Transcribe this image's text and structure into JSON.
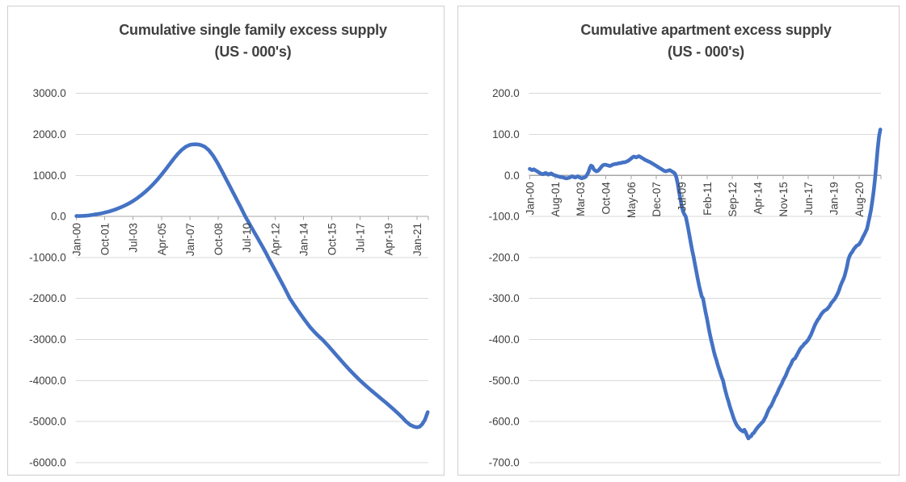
{
  "page": {
    "background": "#ffffff",
    "panel_border_color": "#cfcfcf",
    "text_color": "#404040",
    "gridline_color": "#d9d9d9",
    "axis_color": "#a6a6a6"
  },
  "chart_data": [
    {
      "type": "line",
      "title": "Cumulative single family excess supply",
      "subtitle": "(US - 000's)",
      "frequency": "monthly",
      "x_start": "Jan-2000",
      "x_tick_interval_months": 21,
      "x_tick_labels": [
        "Jan-00",
        "Oct-01",
        "Jul-03",
        "Apr-05",
        "Jan-07",
        "Oct-08",
        "Jul-10",
        "Apr-12",
        "Jan-14",
        "Oct-15",
        "Jul-17",
        "Apr-19",
        "Jan-21"
      ],
      "ylim": [
        -6000,
        3000
      ],
      "y_tick_step": 1000,
      "y_tick_labels": [
        "3000.0",
        "2000.0",
        "1000.0",
        "0.0",
        "-1000.0",
        "-2000.0",
        "-3000.0",
        "-4000.0",
        "-5000.0",
        "-6000.0"
      ],
      "grid": true,
      "legend": "none",
      "line_color": "#4472c4",
      "points_month_value": [
        [
          0,
          10
        ],
        [
          3,
          12
        ],
        [
          6,
          16
        ],
        [
          9,
          25
        ],
        [
          12,
          40
        ],
        [
          15,
          55
        ],
        [
          18,
          72
        ],
        [
          21,
          95
        ],
        [
          24,
          120
        ],
        [
          27,
          150
        ],
        [
          30,
          185
        ],
        [
          33,
          225
        ],
        [
          36,
          270
        ],
        [
          39,
          320
        ],
        [
          42,
          378
        ],
        [
          45,
          445
        ],
        [
          48,
          520
        ],
        [
          51,
          602
        ],
        [
          54,
          692
        ],
        [
          57,
          792
        ],
        [
          60,
          900
        ],
        [
          63,
          1020
        ],
        [
          66,
          1145
        ],
        [
          69,
          1275
        ],
        [
          72,
          1405
        ],
        [
          75,
          1525
        ],
        [
          78,
          1625
        ],
        [
          81,
          1700
        ],
        [
          84,
          1745
        ],
        [
          86,
          1756
        ],
        [
          88,
          1760
        ],
        [
          90,
          1756
        ],
        [
          92,
          1742
        ],
        [
          95,
          1700
        ],
        [
          98,
          1615
        ],
        [
          101,
          1490
        ],
        [
          104,
          1330
        ],
        [
          107,
          1150
        ],
        [
          110,
          960
        ],
        [
          113,
          770
        ],
        [
          116,
          580
        ],
        [
          119,
          390
        ],
        [
          122,
          200
        ],
        [
          125,
          0
        ],
        [
          128,
          -175
        ],
        [
          131,
          -350
        ],
        [
          134,
          -520
        ],
        [
          137,
          -695
        ],
        [
          140,
          -870
        ],
        [
          142,
          -1000
        ],
        [
          145,
          -1185
        ],
        [
          148,
          -1370
        ],
        [
          151,
          -1555
        ],
        [
          154,
          -1740
        ],
        [
          156,
          -1870
        ],
        [
          158,
          -2000
        ],
        [
          161,
          -2150
        ],
        [
          164,
          -2295
        ],
        [
          167,
          -2435
        ],
        [
          170,
          -2570
        ],
        [
          173,
          -2700
        ],
        [
          176,
          -2810
        ],
        [
          179,
          -2910
        ],
        [
          182,
          -3000
        ],
        [
          186,
          -3140
        ],
        [
          190,
          -3290
        ],
        [
          194,
          -3440
        ],
        [
          198,
          -3590
        ],
        [
          202,
          -3735
        ],
        [
          206,
          -3870
        ],
        [
          210,
          -4000
        ],
        [
          214,
          -4120
        ],
        [
          218,
          -4235
        ],
        [
          222,
          -4345
        ],
        [
          226,
          -4455
        ],
        [
          230,
          -4565
        ],
        [
          234,
          -4680
        ],
        [
          238,
          -4800
        ],
        [
          241,
          -4895
        ],
        [
          244,
          -5000
        ],
        [
          247,
          -5080
        ],
        [
          250,
          -5125
        ],
        [
          252,
          -5140
        ],
        [
          254,
          -5125
        ],
        [
          256,
          -5060
        ],
        [
          258,
          -4950
        ],
        [
          260,
          -4770
        ]
      ]
    },
    {
      "type": "line",
      "title": "Cumulative apartment excess supply",
      "subtitle": "(US - 000's)",
      "frequency": "monthly",
      "x_start": "Jan-2000",
      "x_tick_interval_months": 19,
      "x_tick_labels": [
        "Jan-00",
        "Aug-01",
        "Mar-03",
        "Oct-04",
        "May-06",
        "Dec-07",
        "Jul-09",
        "Feb-11",
        "Sep-12",
        "Apr-14",
        "Nov-15",
        "Jun-17",
        "Jan-19",
        "Aug-20"
      ],
      "ylim": [
        -700,
        200
      ],
      "y_tick_step": 100,
      "y_tick_labels": [
        "200.0",
        "100.0",
        "0.0",
        "-100.0",
        "-200.0",
        "-300.0",
        "-400.0",
        "-500.0",
        "-600.0",
        "-700.0"
      ],
      "grid": true,
      "legend": "none",
      "line_color": "#4472c4",
      "points_month_value": [
        [
          0,
          16
        ],
        [
          1,
          14
        ],
        [
          2,
          13
        ],
        [
          3,
          15
        ],
        [
          4,
          13
        ],
        [
          5,
          11
        ],
        [
          6,
          9
        ],
        [
          7,
          7
        ],
        [
          8,
          5
        ],
        [
          9,
          4
        ],
        [
          10,
          3
        ],
        [
          11,
          5
        ],
        [
          12,
          6
        ],
        [
          13,
          4
        ],
        [
          14,
          2
        ],
        [
          15,
          4
        ],
        [
          16,
          5
        ],
        [
          17,
          3
        ],
        [
          18,
          1
        ],
        [
          19,
          0
        ],
        [
          20,
          -1
        ],
        [
          21,
          -2
        ],
        [
          22,
          -3
        ],
        [
          23,
          -4
        ],
        [
          24,
          -4
        ],
        [
          25,
          -5
        ],
        [
          26,
          -6
        ],
        [
          27,
          -7
        ],
        [
          28,
          -7
        ],
        [
          29,
          -6
        ],
        [
          30,
          -5
        ],
        [
          31,
          -3
        ],
        [
          32,
          -2
        ],
        [
          33,
          -4
        ],
        [
          34,
          -5
        ],
        [
          35,
          -4
        ],
        [
          36,
          -2
        ],
        [
          37,
          -4
        ],
        [
          38,
          -6
        ],
        [
          39,
          -7
        ],
        [
          40,
          -6
        ],
        [
          41,
          -5
        ],
        [
          42,
          -3
        ],
        [
          43,
          2
        ],
        [
          44,
          8
        ],
        [
          45,
          18
        ],
        [
          46,
          24
        ],
        [
          47,
          22
        ],
        [
          48,
          15
        ],
        [
          49,
          12
        ],
        [
          50,
          10
        ],
        [
          51,
          11
        ],
        [
          52,
          14
        ],
        [
          53,
          18
        ],
        [
          54,
          22
        ],
        [
          55,
          25
        ],
        [
          56,
          26
        ],
        [
          57,
          26
        ],
        [
          58,
          25
        ],
        [
          59,
          24
        ],
        [
          60,
          23
        ],
        [
          61,
          24
        ],
        [
          62,
          26
        ],
        [
          63,
          27
        ],
        [
          64,
          28
        ],
        [
          65,
          28
        ],
        [
          66,
          29
        ],
        [
          67,
          30
        ],
        [
          68,
          30
        ],
        [
          69,
          31
        ],
        [
          70,
          32
        ],
        [
          71,
          32
        ],
        [
          72,
          33
        ],
        [
          74,
          36
        ],
        [
          76,
          41
        ],
        [
          77,
          44
        ],
        [
          78,
          46
        ],
        [
          79,
          45
        ],
        [
          80,
          44
        ],
        [
          81,
          46
        ],
        [
          82,
          47
        ],
        [
          83,
          45
        ],
        [
          84,
          43
        ],
        [
          85,
          41
        ],
        [
          86,
          39
        ],
        [
          87,
          37
        ],
        [
          88,
          36
        ],
        [
          89,
          34
        ],
        [
          90,
          33
        ],
        [
          91,
          31
        ],
        [
          92,
          29
        ],
        [
          93,
          27
        ],
        [
          94,
          25
        ],
        [
          95,
          23
        ],
        [
          96,
          21
        ],
        [
          97,
          19
        ],
        [
          98,
          17
        ],
        [
          99,
          15
        ],
        [
          100,
          13
        ],
        [
          101,
          11
        ],
        [
          102,
          10
        ],
        [
          103,
          11
        ],
        [
          104,
          12
        ],
        [
          105,
          13
        ],
        [
          106,
          11
        ],
        [
          107,
          9
        ],
        [
          108,
          7
        ],
        [
          109,
          4
        ],
        [
          110,
          -5
        ],
        [
          111,
          -20
        ],
        [
          112,
          -40
        ],
        [
          113,
          -58
        ],
        [
          114,
          -75
        ],
        [
          115,
          -88
        ],
        [
          116,
          -95
        ],
        [
          117,
          -100
        ],
        [
          118,
          -115
        ],
        [
          119,
          -132
        ],
        [
          120,
          -150
        ],
        [
          121,
          -168
        ],
        [
          122,
          -185
        ],
        [
          123,
          -200
        ],
        [
          124,
          -218
        ],
        [
          125,
          -235
        ],
        [
          126,
          -252
        ],
        [
          127,
          -268
        ],
        [
          128,
          -282
        ],
        [
          129,
          -295
        ],
        [
          130,
          -300
        ],
        [
          131,
          -318
        ],
        [
          132,
          -335
        ],
        [
          133,
          -350
        ],
        [
          134,
          -368
        ],
        [
          135,
          -385
        ],
        [
          136,
          -400
        ],
        [
          137,
          -413
        ],
        [
          138,
          -428
        ],
        [
          139,
          -440
        ],
        [
          140,
          -450
        ],
        [
          141,
          -462
        ],
        [
          142,
          -472
        ],
        [
          143,
          -482
        ],
        [
          144,
          -492
        ],
        [
          145,
          -500
        ],
        [
          146,
          -515
        ],
        [
          147,
          -528
        ],
        [
          148,
          -540
        ],
        [
          149,
          -550
        ],
        [
          150,
          -562
        ],
        [
          151,
          -572
        ],
        [
          152,
          -582
        ],
        [
          153,
          -592
        ],
        [
          154,
          -600
        ],
        [
          155,
          -607
        ],
        [
          156,
          -612
        ],
        [
          157,
          -616
        ],
        [
          158,
          -620
        ],
        [
          159,
          -622
        ],
        [
          160,
          -624
        ],
        [
          161,
          -620
        ],
        [
          162,
          -626
        ],
        [
          163,
          -634
        ],
        [
          164,
          -641
        ],
        [
          165,
          -637
        ],
        [
          166,
          -636
        ],
        [
          167,
          -630
        ],
        [
          168,
          -628
        ],
        [
          169,
          -623
        ],
        [
          170,
          -618
        ],
        [
          171,
          -614
        ],
        [
          172,
          -610
        ],
        [
          173,
          -607
        ],
        [
          174,
          -603
        ],
        [
          175,
          -600
        ],
        [
          176,
          -594
        ],
        [
          177,
          -588
        ],
        [
          178,
          -580
        ],
        [
          179,
          -572
        ],
        [
          180,
          -566
        ],
        [
          181,
          -562
        ],
        [
          182,
          -555
        ],
        [
          183,
          -548
        ],
        [
          184,
          -540
        ],
        [
          185,
          -535
        ],
        [
          186,
          -528
        ],
        [
          187,
          -520
        ],
        [
          188,
          -514
        ],
        [
          189,
          -508
        ],
        [
          190,
          -500
        ],
        [
          191,
          -494
        ],
        [
          192,
          -488
        ],
        [
          193,
          -480
        ],
        [
          194,
          -472
        ],
        [
          195,
          -466
        ],
        [
          196,
          -460
        ],
        [
          197,
          -452
        ],
        [
          198,
          -448
        ],
        [
          199,
          -446
        ],
        [
          200,
          -440
        ],
        [
          201,
          -434
        ],
        [
          202,
          -428
        ],
        [
          203,
          -422
        ],
        [
          204,
          -418
        ],
        [
          205,
          -415
        ],
        [
          206,
          -410
        ],
        [
          207,
          -408
        ],
        [
          208,
          -404
        ],
        [
          209,
          -400
        ],
        [
          210,
          -394
        ],
        [
          211,
          -388
        ],
        [
          212,
          -380
        ],
        [
          213,
          -372
        ],
        [
          214,
          -364
        ],
        [
          215,
          -358
        ],
        [
          216,
          -352
        ],
        [
          217,
          -348
        ],
        [
          218,
          -342
        ],
        [
          219,
          -337
        ],
        [
          220,
          -333
        ],
        [
          221,
          -330
        ],
        [
          222,
          -328
        ],
        [
          223,
          -326
        ],
        [
          224,
          -322
        ],
        [
          225,
          -318
        ],
        [
          226,
          -312
        ],
        [
          227,
          -308
        ],
        [
          228,
          -304
        ],
        [
          229,
          -300
        ],
        [
          230,
          -294
        ],
        [
          231,
          -288
        ],
        [
          232,
          -280
        ],
        [
          233,
          -270
        ],
        [
          234,
          -262
        ],
        [
          235,
          -255
        ],
        [
          236,
          -247
        ],
        [
          237,
          -235
        ],
        [
          238,
          -222
        ],
        [
          239,
          -205
        ],
        [
          240,
          -196
        ],
        [
          241,
          -190
        ],
        [
          242,
          -186
        ],
        [
          243,
          -180
        ],
        [
          244,
          -176
        ],
        [
          245,
          -172
        ],
        [
          246,
          -170
        ],
        [
          247,
          -168
        ],
        [
          248,
          -163
        ],
        [
          249,
          -157
        ],
        [
          250,
          -150
        ],
        [
          251,
          -144
        ],
        [
          252,
          -137
        ],
        [
          253,
          -130
        ],
        [
          254,
          -115
        ],
        [
          255,
          -100
        ],
        [
          256,
          -84
        ],
        [
          257,
          -62
        ],
        [
          258,
          -38
        ],
        [
          259,
          -8
        ],
        [
          260,
          28
        ],
        [
          261,
          65
        ],
        [
          262,
          95
        ],
        [
          263,
          112
        ]
      ]
    }
  ]
}
